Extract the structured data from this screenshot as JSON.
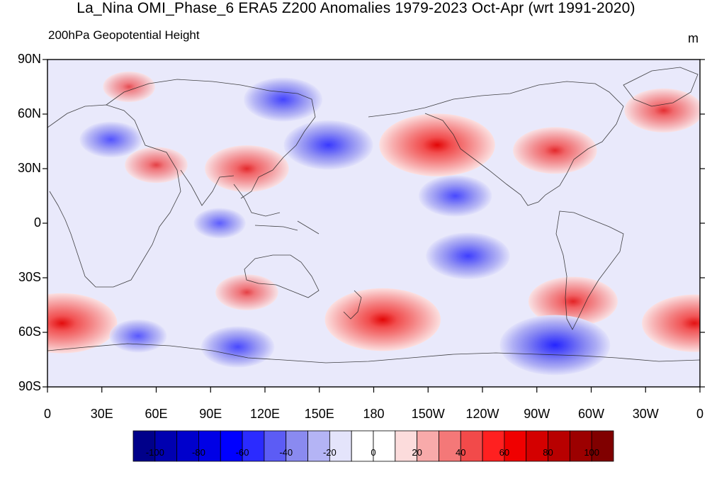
{
  "title": "La_Nina OMI_Phase_6 ERA5 Z200 Anomalies 1979-2023 Oct-Apr (wrt 1991-2020)",
  "subtitle": "200hPa Geopotential Height",
  "units": "m",
  "y_axis": {
    "ticks": [
      "90N",
      "60N",
      "30N",
      "0",
      "30S",
      "60S",
      "90S"
    ]
  },
  "x_axis": {
    "ticks": [
      "0",
      "30E",
      "60E",
      "90E",
      "120E",
      "150E",
      "180",
      "150W",
      "120W",
      "90W",
      "60W",
      "30W",
      "0"
    ]
  },
  "colorbar": {
    "labels": [
      "-100",
      "-80",
      "-60",
      "-40",
      "-20",
      "0",
      "20",
      "40",
      "60",
      "80",
      "100"
    ],
    "colors": [
      "#00008a",
      "#0000b0",
      "#0000cc",
      "#0000e6",
      "#0000ff",
      "#2b2bff",
      "#5c5cf5",
      "#8a8af0",
      "#b4b4f5",
      "#e4e4fb",
      "#ffffff",
      "#ffffff",
      "#fcdcdc",
      "#f8aaaa",
      "#f47878",
      "#f24a4a",
      "#ff2020",
      "#f00000",
      "#d40000",
      "#b80000",
      "#9c0000",
      "#800000"
    ]
  },
  "map_data": {
    "projection": "cylindrical-equidistant",
    "center_longitude": 180,
    "variable": "Z200 anomaly",
    "anomaly_centers": [
      {
        "lon": 155,
        "lat": 43,
        "value": -60
      },
      {
        "lon": 130,
        "lat": 68,
        "value": -50
      },
      {
        "lon": 35,
        "lat": 46,
        "value": -35
      },
      {
        "lon": 215,
        "lat": 43,
        "value": 85
      },
      {
        "lon": 280,
        "lat": 40,
        "value": 55
      },
      {
        "lon": 340,
        "lat": 62,
        "value": 50
      },
      {
        "lon": 45,
        "lat": 75,
        "value": 25
      },
      {
        "lon": 110,
        "lat": 30,
        "value": 55
      },
      {
        "lon": 60,
        "lat": 32,
        "value": 35
      },
      {
        "lon": 225,
        "lat": 15,
        "value": -45
      },
      {
        "lon": 232,
        "lat": -18,
        "value": -55
      },
      {
        "lon": 95,
        "lat": 0,
        "value": -25
      },
      {
        "lon": 185,
        "lat": -53,
        "value": 85
      },
      {
        "lon": 290,
        "lat": -43,
        "value": 60
      },
      {
        "lon": 8,
        "lat": -55,
        "value": 80
      },
      {
        "lon": 357,
        "lat": -55,
        "value": 75
      },
      {
        "lon": 110,
        "lat": -38,
        "value": 35
      },
      {
        "lon": 280,
        "lat": -67,
        "value": -80
      },
      {
        "lon": 105,
        "lat": -68,
        "value": -45
      },
      {
        "lon": 50,
        "lat": -62,
        "value": -30
      }
    ]
  }
}
